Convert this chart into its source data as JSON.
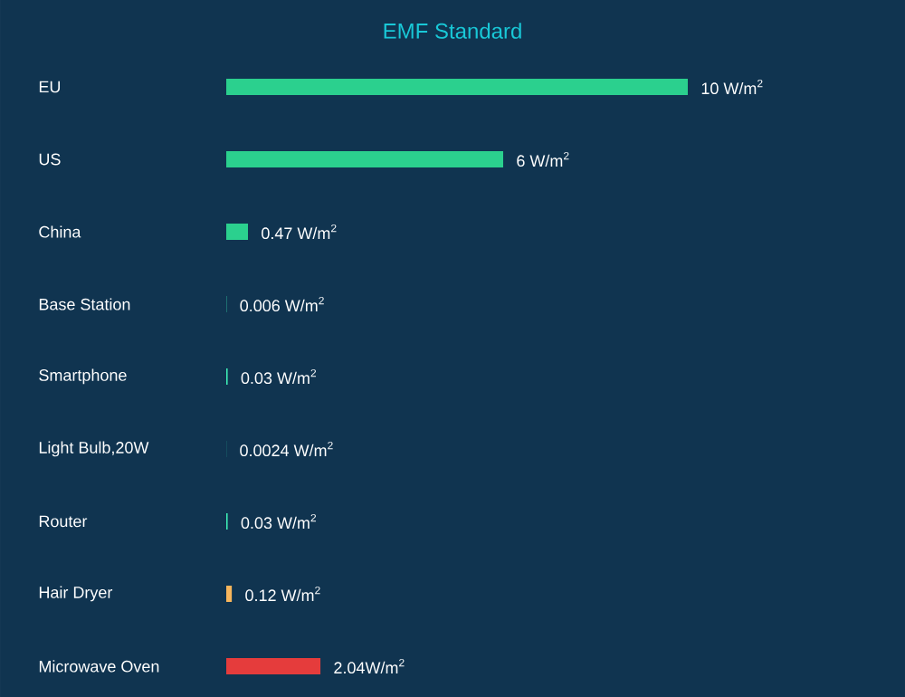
{
  "chart_data": {
    "type": "bar",
    "orientation": "horizontal",
    "title": "EMF Standard",
    "categories": [
      "EU",
      "US",
      "China",
      "Base Station",
      "Smartphone",
      "Light Bulb,20W",
      "Router",
      "Hair Dryer",
      "Microwave Oven"
    ],
    "values": [
      10,
      6,
      0.47,
      0.006,
      0.03,
      0.0024,
      0.03,
      0.12,
      2.04
    ],
    "colors": [
      "#2bd08e",
      "#2bd08e",
      "#2bd08e",
      "#3ef0b8",
      "#3ef0b8",
      "#3ef0b8",
      "#3ef0b8",
      "#f7b55c",
      "#e53c3c"
    ],
    "value_labels": [
      "10 W/m$^{2}$",
      "6 W/m$^{2}$",
      "0.47 W/m$^{2}$",
      "0.006 W/m$^{2}$",
      "0.03 W/m$^{2}$",
      "0.0024 W/m$^{2}$",
      "0.03 W/m$^{2}$",
      "0.12 W/m$^{2}$",
      "2.04W/m$^{2}$"
    ]
  }
}
